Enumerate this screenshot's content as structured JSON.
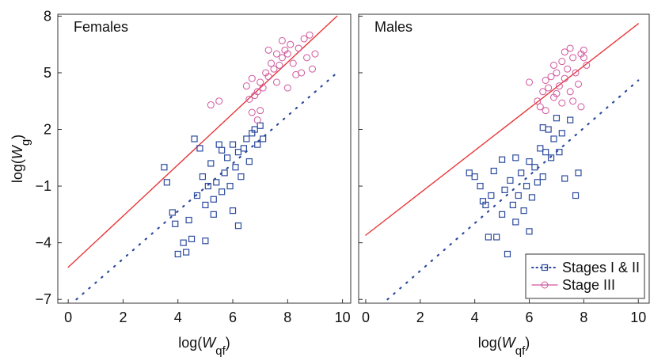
{
  "chart_data": [
    {
      "type": "scatter",
      "title": "Females",
      "x_label": [
        "log(",
        "W",
        "qf",
        ")"
      ],
      "y_label": [
        "log(",
        "W",
        "g",
        ")"
      ],
      "xlim": [
        -0.38,
        10.3
      ],
      "ylim": [
        -7.2,
        8.1
      ],
      "xticks": [
        0,
        2,
        4,
        6,
        8,
        10
      ],
      "yticks": [
        {
          "value": -7,
          "label": "−7"
        },
        {
          "value": -4,
          "label": "−4"
        },
        {
          "value": -1,
          "label": "−1"
        },
        2,
        5,
        8
      ],
      "series": [
        {
          "marker": "square",
          "color": "#2b4a9e",
          "x": [
            3.5,
            4.0,
            4.3,
            4.2,
            4.5,
            3.8,
            3.9,
            4.6,
            4.8,
            4.7,
            4.9,
            5.0,
            5.1,
            5.2,
            5.3,
            5.4,
            5.5,
            5.6,
            5.7,
            5.8,
            5.9,
            6.0,
            6.1,
            6.2,
            6.3,
            6.4,
            6.5,
            6.6,
            6.7,
            6.8,
            6.9,
            7.0,
            5.0,
            6.2,
            3.6,
            4.4,
            5.6,
            6.0,
            7.1,
            5.3
          ],
          "values": [
            0,
            -4.6,
            -4.5,
            -4.0,
            -3.8,
            -2.4,
            -3.0,
            1.5,
            1.0,
            -1.5,
            -0.5,
            -2.0,
            -1.0,
            0.2,
            -1.7,
            -0.8,
            1.2,
            -1.3,
            -0.3,
            0.5,
            -1.0,
            -2.3,
            0.0,
            0.8,
            -0.5,
            1.0,
            1.5,
            0.3,
            1.8,
            2.0,
            1.2,
            2.2,
            -3.9,
            -3.1,
            -0.8,
            -2.8,
            0.9,
            1.2,
            1.5,
            -2.5
          ]
        },
        {
          "marker": "circle",
          "color": "#d0559c",
          "x": [
            6.6,
            5.5,
            5.2,
            6.9,
            7.0,
            7.2,
            7.3,
            7.4,
            7.5,
            7.6,
            7.8,
            7.9,
            8.0,
            8.2,
            8.4,
            8.6,
            8.8,
            8.5,
            8.7,
            7.1,
            6.8,
            7.7,
            8.1,
            8.3,
            7.0,
            6.7,
            7.3,
            7.6,
            8.9,
            6.9,
            6.7,
            7.8,
            6.5,
            9.0,
            8.0
          ],
          "values": [
            3.6,
            3.5,
            3.3,
            4.0,
            4.5,
            5.0,
            4.8,
            5.5,
            5.2,
            6.0,
            5.8,
            6.2,
            6.0,
            5.5,
            6.3,
            6.8,
            7.0,
            5.0,
            5.8,
            4.2,
            3.8,
            5.4,
            6.5,
            4.9,
            3.0,
            4.7,
            6.2,
            4.5,
            5.2,
            2.5,
            2.9,
            6.7,
            4.3,
            6.0,
            4.2
          ]
        }
      ],
      "lines": [
        {
          "style": "dotted",
          "color": "#2b4a9e",
          "x": [
            0.3,
            9.8
          ],
          "values": [
            -7,
            5
          ]
        },
        {
          "style": "solid",
          "color": "#e8373a",
          "x": [
            0,
            9.8
          ],
          "values": [
            -5.3,
            8
          ]
        }
      ]
    },
    {
      "type": "scatter",
      "title": "Males",
      "x_label": [
        "log(",
        "W",
        "qf",
        ")"
      ],
      "xlim": [
        -0.26,
        10.4
      ],
      "ylim": [
        -7.2,
        8.1
      ],
      "xticks": [
        0,
        2,
        4,
        6,
        8,
        10
      ],
      "yticks": [
        -7,
        -4,
        -1,
        2,
        5,
        8
      ],
      "legend": "lower right",
      "series": [
        {
          "name": "Stages I & II",
          "marker": "square",
          "color": "#2b4a9e",
          "x": [
            3.8,
            4.0,
            4.2,
            4.4,
            4.6,
            4.5,
            4.8,
            4.7,
            5.0,
            5.1,
            5.2,
            5.3,
            5.4,
            5.5,
            5.6,
            5.7,
            5.8,
            5.9,
            6.0,
            6.1,
            6.2,
            6.3,
            6.4,
            6.5,
            6.6,
            6.7,
            6.8,
            6.9,
            7.0,
            7.1,
            7.2,
            7.5,
            7.7,
            7.8,
            6.0,
            5.0,
            4.3,
            6.5,
            7.3,
            5.5
          ],
          "values": [
            -0.3,
            -0.5,
            -1.0,
            -2.0,
            -1.5,
            -3.7,
            -3.7,
            -0.2,
            -2.5,
            -1.2,
            -4.6,
            -0.7,
            -2.0,
            0.5,
            -1.5,
            -0.3,
            -2.3,
            -1.0,
            0.3,
            -1.6,
            0.0,
            -0.8,
            1.0,
            -0.5,
            0.8,
            2.0,
            0.5,
            1.5,
            2.6,
            0.8,
            1.8,
            2.5,
            -1.5,
            -0.3,
            -3.4,
            0.4,
            -1.8,
            2.1,
            -0.6,
            -2.9
          ]
        },
        {
          "name": "Stage III",
          "marker": "circle",
          "color": "#d0559c",
          "x": [
            6.0,
            6.3,
            6.5,
            6.6,
            6.7,
            6.8,
            6.9,
            7.0,
            7.1,
            7.2,
            7.3,
            7.4,
            7.5,
            7.6,
            7.7,
            7.8,
            7.9,
            8.0,
            8.1,
            7.9,
            7.6,
            6.4,
            7.0,
            7.3,
            6.9,
            7.2,
            8.0,
            6.6,
            7.5
          ],
          "values": [
            4.5,
            3.5,
            4.0,
            3.0,
            4.2,
            4.8,
            3.7,
            5.0,
            4.3,
            5.6,
            4.7,
            5.2,
            4.0,
            5.8,
            5.0,
            4.4,
            6.0,
            6.2,
            5.4,
            3.2,
            3.5,
            3.2,
            3.9,
            6.1,
            5.4,
            3.4,
            5.8,
            4.6,
            6.3
          ]
        }
      ],
      "lines": [
        {
          "style": "dotted",
          "color": "#2b4a9e",
          "x": [
            0.8,
            10
          ],
          "values": [
            -7,
            4.6
          ]
        },
        {
          "style": "solid",
          "color": "#e8373a",
          "x": [
            0,
            10
          ],
          "values": [
            -3.6,
            7.6
          ]
        }
      ]
    }
  ]
}
